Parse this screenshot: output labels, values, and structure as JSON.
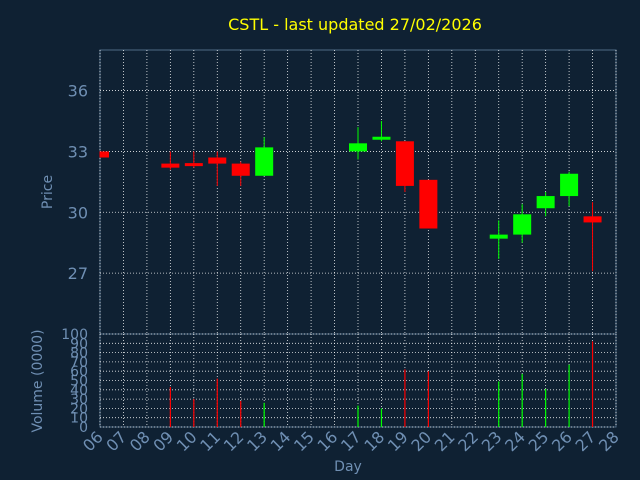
{
  "colors": {
    "background": "#0f2133",
    "title": "#ffff00",
    "axis_text": "#6f8fb3",
    "frame": "#4f6a86",
    "grid": "#ffffff",
    "up": "#00ff00",
    "down": "#ff0000"
  },
  "chart_data": [
    {
      "type": "candlestick",
      "title": "CSTL - last updated 27/02/2026",
      "ylabel": "Price",
      "ylim": [
        24,
        38
      ],
      "yticks": [
        27,
        30,
        33,
        36
      ],
      "grid": true,
      "categories": [
        "06",
        "07",
        "08",
        "09",
        "10",
        "11",
        "12",
        "13",
        "14",
        "15",
        "16",
        "17",
        "18",
        "19",
        "20",
        "21",
        "22",
        "23",
        "24",
        "25",
        "26",
        "27",
        "28"
      ],
      "candles": [
        {
          "day": "06",
          "open": 33.0,
          "high": 33.0,
          "low": 32.7,
          "close": 32.7
        },
        {
          "day": "09",
          "open": 32.4,
          "high": 33.0,
          "low": 32.1,
          "close": 32.2
        },
        {
          "day": "10",
          "open": 32.4,
          "high": 33.0,
          "low": 32.2,
          "close": 32.3
        },
        {
          "day": "11",
          "open": 32.7,
          "high": 33.0,
          "low": 31.3,
          "close": 32.4
        },
        {
          "day": "12",
          "open": 32.4,
          "high": 32.5,
          "low": 31.3,
          "close": 31.8
        },
        {
          "day": "13",
          "open": 31.8,
          "high": 33.7,
          "low": 31.8,
          "close": 33.2
        },
        {
          "day": "17",
          "open": 33.0,
          "high": 34.2,
          "low": 32.6,
          "close": 33.4
        },
        {
          "day": "18",
          "open": 33.6,
          "high": 34.5,
          "low": 33.5,
          "close": 33.7
        },
        {
          "day": "19",
          "open": 33.5,
          "high": 33.5,
          "low": 31.0,
          "close": 31.3
        },
        {
          "day": "20",
          "open": 31.6,
          "high": 31.6,
          "low": 29.2,
          "close": 29.2
        },
        {
          "day": "23",
          "open": 28.7,
          "high": 29.6,
          "low": 27.7,
          "close": 28.9
        },
        {
          "day": "24",
          "open": 28.9,
          "high": 30.4,
          "low": 28.5,
          "close": 29.9
        },
        {
          "day": "25",
          "open": 30.2,
          "high": 31.0,
          "low": 29.8,
          "close": 30.8
        },
        {
          "day": "26",
          "open": 30.8,
          "high": 32.0,
          "low": 30.3,
          "close": 31.9
        },
        {
          "day": "27",
          "open": 29.8,
          "high": 30.5,
          "low": 27.1,
          "close": 29.5
        }
      ]
    },
    {
      "type": "bar",
      "xlabel": "Day",
      "ylabel": "Volume (0000)",
      "ylim": [
        0,
        100
      ],
      "yticks": [
        0,
        10,
        20,
        30,
        40,
        50,
        60,
        70,
        80,
        90,
        100
      ],
      "grid": true,
      "categories": [
        "06",
        "07",
        "08",
        "09",
        "10",
        "11",
        "12",
        "13",
        "14",
        "15",
        "16",
        "17",
        "18",
        "19",
        "20",
        "21",
        "22",
        "23",
        "24",
        "25",
        "26",
        "27",
        "28"
      ],
      "series": [
        {
          "values": [
            {
              "day": "09",
              "value": 43,
              "direction": "down"
            },
            {
              "day": "10",
              "value": 30,
              "direction": "down"
            },
            {
              "day": "11",
              "value": 52,
              "direction": "down"
            },
            {
              "day": "12",
              "value": 28,
              "direction": "down"
            },
            {
              "day": "13",
              "value": 26,
              "direction": "up"
            },
            {
              "day": "17",
              "value": 23,
              "direction": "up"
            },
            {
              "day": "18",
              "value": 20,
              "direction": "up"
            },
            {
              "day": "19",
              "value": 62,
              "direction": "down"
            },
            {
              "day": "20",
              "value": 60,
              "direction": "down"
            },
            {
              "day": "23",
              "value": 49,
              "direction": "up"
            },
            {
              "day": "24",
              "value": 57,
              "direction": "up"
            },
            {
              "day": "25",
              "value": 41,
              "direction": "up"
            },
            {
              "day": "26",
              "value": 67,
              "direction": "up"
            },
            {
              "day": "27",
              "value": 92,
              "direction": "down"
            }
          ]
        }
      ]
    }
  ]
}
